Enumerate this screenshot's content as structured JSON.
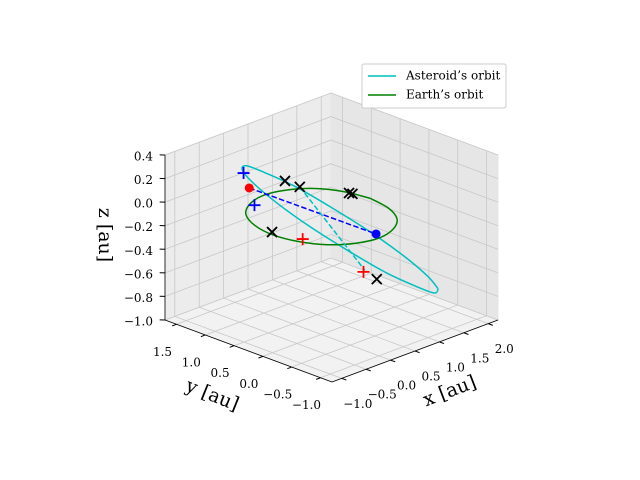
{
  "chart_data": {
    "type": "scatter3d",
    "xlabel": "x [au]",
    "ylabel": "y [au]",
    "zlabel": "z [au]",
    "xlim": [
      -1.2,
      2.2
    ],
    "ylim": [
      -1.2,
      1.7
    ],
    "zlim": [
      -1.0,
      0.4
    ],
    "xticks": [
      {
        "value": -1,
        "label": "−1.0"
      },
      {
        "value": -0.5,
        "label": "−0.5"
      },
      {
        "value": 0,
        "label": "0.0"
      },
      {
        "value": 0.5,
        "label": "0.5"
      },
      {
        "value": 1,
        "label": "1.0"
      },
      {
        "value": 1.5,
        "label": "1.5"
      },
      {
        "value": 2,
        "label": "2.0"
      }
    ],
    "yticks": [
      {
        "value": -1,
        "label": "−1.0"
      },
      {
        "value": -0.5,
        "label": "−0.5"
      },
      {
        "value": 0,
        "label": "0.0"
      },
      {
        "value": 0.5,
        "label": "0.5"
      },
      {
        "value": 1,
        "label": "1.0"
      },
      {
        "value": 1.5,
        "label": "1.5"
      }
    ],
    "zticks": [
      {
        "value": -1,
        "label": "−1.0"
      },
      {
        "value": -0.8,
        "label": "−0.8"
      },
      {
        "value": -0.6,
        "label": "−0.6"
      },
      {
        "value": -0.4,
        "label": "−0.4"
      },
      {
        "value": -0.2,
        "label": "−0.2"
      },
      {
        "value": 0,
        "label": "0.0"
      },
      {
        "value": 0.2,
        "label": "0.2"
      },
      {
        "value": 0.4,
        "label": "0.4"
      }
    ],
    "grid": true,
    "legend": "upper right",
    "series": [
      {
        "name": "Asteroid’s orbit",
        "color": "#00bfbf",
        "linestyle": "solid",
        "x": [
          1.8,
          1.85,
          1.71,
          1.41,
          1.0,
          0.53,
          0.08,
          -0.28,
          -0.5,
          -0.55,
          -0.41,
          -0.11,
          0.3,
          0.77,
          1.22,
          1.58,
          1.8
        ],
        "y": [
          -0.5,
          -0.27,
          0.03,
          0.36,
          0.675,
          0.92,
          1.06,
          1.07,
          0.95,
          0.72,
          0.42,
          0.09,
          -0.225,
          -0.47,
          -0.61,
          -0.62,
          -0.5
        ],
        "z": [
          -0.8,
          -0.74,
          -0.6,
          -0.41,
          -0.2,
          0.01,
          0.17,
          0.28,
          0.3,
          0.24,
          0.1,
          -0.09,
          -0.3,
          -0.51,
          -0.67,
          -0.78,
          -0.8
        ]
      },
      {
        "name": "Earth’s orbit",
        "color": "#008000",
        "linestyle": "solid",
        "x": [
          1,
          0.92,
          0.71,
          0.38,
          0,
          -0.38,
          -0.71,
          -0.92,
          -1,
          -0.92,
          -0.71,
          -0.38,
          0,
          0.38,
          0.71,
          0.92,
          1
        ],
        "y": [
          0,
          0.38,
          0.71,
          0.92,
          1,
          0.92,
          0.71,
          0.38,
          0,
          -0.38,
          -0.71,
          -0.92,
          -1,
          -0.92,
          -0.71,
          -0.38,
          0
        ],
        "z": [
          0,
          0,
          0,
          0,
          0,
          0,
          0,
          0,
          0,
          0,
          0,
          0,
          0,
          0,
          0,
          0,
          0
        ]
      },
      {
        "color": "#0000ff",
        "linestyle": "dashed",
        "x": [
          -0.76,
          0.08
        ],
        "y": [
          0.61,
          -0.88
        ],
        "z": [
          0.25,
          0
        ]
      },
      {
        "color": "#00bfbf",
        "linestyle": "dashed",
        "x": [
          0.11,
          0.59
        ],
        "y": [
          0.47,
          -0.25
        ],
        "z": [
          0.15,
          -0.5
        ]
      },
      {
        "color": "#ff0000",
        "marker": "o",
        "x": [
          -0.76
        ],
        "y": [
          0.61
        ],
        "z": [
          0.25
        ]
      },
      {
        "color": "#0000ff",
        "marker": "o",
        "x": [
          0.08
        ],
        "y": [
          -0.88
        ],
        "z": [
          0
        ]
      },
      {
        "color": "#000000",
        "marker": "x",
        "x": [
          -0.04,
          0.11,
          -0.93,
          0.93,
          0.94,
          0.79
        ],
        "y": [
          0.6,
          0.47,
          0.07,
          0.31,
          0.26,
          -0.29
        ],
        "z": [
          0.2,
          0.15,
          0,
          0,
          0,
          -0.6
        ]
      },
      {
        "color": "#0000ff",
        "marker": "+",
        "x": [
          -0.57,
          -0.37
        ],
        "y": [
          0.87,
          0.85
        ],
        "z": [
          0.3,
          0
        ]
      },
      {
        "color": "#ff0000",
        "marker": "+",
        "x": [
          -0.81,
          0.53
        ],
        "y": [
          -0.36,
          -0.28
        ],
        "z": [
          0,
          -0.5
        ]
      }
    ]
  }
}
